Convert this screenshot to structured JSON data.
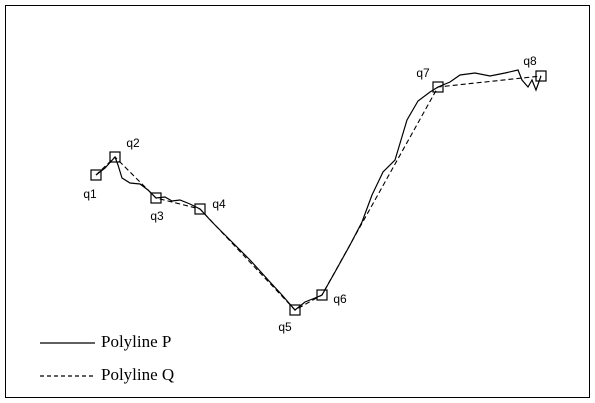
{
  "nodes": [
    {
      "label": "q1"
    },
    {
      "label": "q2"
    },
    {
      "label": "q3"
    },
    {
      "label": "q4"
    },
    {
      "label": "q5"
    },
    {
      "label": "q6"
    },
    {
      "label": "q7"
    },
    {
      "label": "q8"
    }
  ],
  "legend": [
    {
      "label": "Polyline P"
    },
    {
      "label": "Polyline Q"
    }
  ]
}
